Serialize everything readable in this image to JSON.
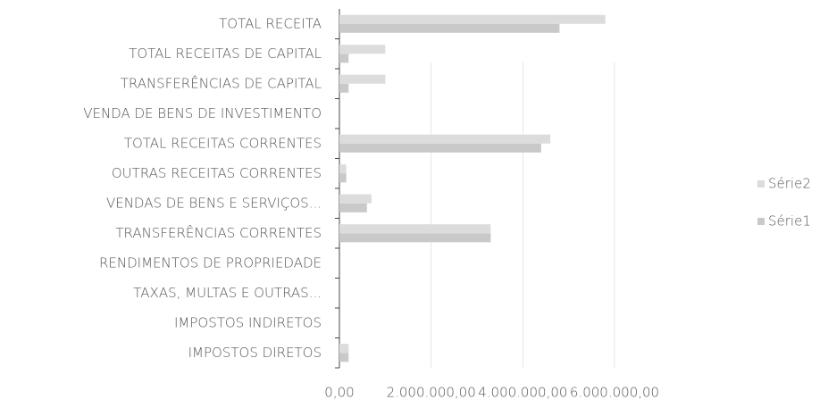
{
  "chart_data": {
    "type": "bar",
    "orientation": "horizontal",
    "categories": [
      "IMPOSTOS DIRETOS",
      "IMPOSTOS INDIRETOS",
      "TAXAS, MULTAS E OUTRAS...",
      "RENDIMENTOS DE PROPRIEDADE",
      "TRANSFERÊNCIAS CORRENTES",
      "VENDAS DE BENS E SERVIÇOS...",
      "OUTRAS RECEITAS CORRENTES",
      "TOTAL RECEITAS CORRENTES",
      "VENDA DE BENS DE INVESTIMENTO",
      "TRANSFERÊNCIAS DE CAPITAL",
      "TOTAL RECEITAS DE CAPITAL",
      "TOTAL RECEITA"
    ],
    "series": [
      {
        "name": "Série1",
        "color": "#c9c9c9",
        "values": [
          200000,
          0,
          0,
          0,
          3300000,
          600000,
          150000,
          4400000,
          0,
          200000,
          200000,
          4800000
        ]
      },
      {
        "name": "Série2",
        "color": "#dcdcdc",
        "values": [
          200000,
          0,
          0,
          0,
          3300000,
          700000,
          150000,
          4600000,
          0,
          1000000,
          1000000,
          5800000
        ]
      }
    ],
    "xlim": [
      0,
      6000000
    ],
    "xticks": [
      {
        "value": 0,
        "label": "0,00"
      },
      {
        "value": 2000000,
        "label": "2.000.000,00"
      },
      {
        "value": 4000000,
        "label": "4.000.000,00"
      },
      {
        "value": 6000000,
        "label": "6.000.000,00"
      }
    ],
    "grid": true,
    "legend": "right"
  }
}
